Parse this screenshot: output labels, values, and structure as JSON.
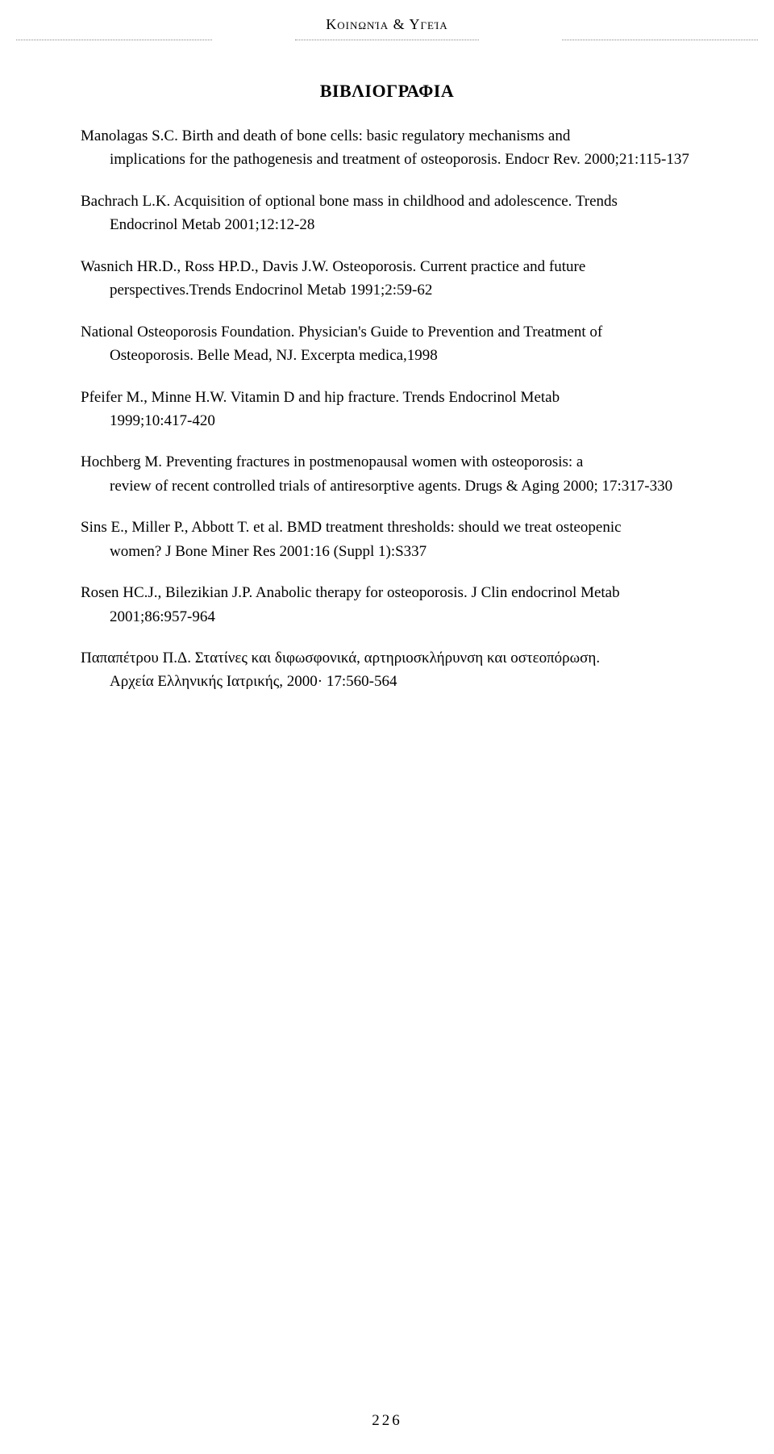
{
  "header": {
    "running_title": "Κοινωνία & Υγεία"
  },
  "section_title": "ΒΙΒΛΙΟΓΡΑΦΙΑ",
  "references": [
    {
      "line1": "Manolagas S.C. Birth and death of bone cells: basic regulatory mechanisms and",
      "cont": "implications for the pathogenesis and treatment of osteoporosis. Endocr Rev. 2000;21:115-137"
    },
    {
      "line1": "Bachrach L.K. Acquisition of optional bone mass in childhood and adolescence. Trends",
      "cont": "Endocrinol Metab 2001;12:12-28"
    },
    {
      "line1": "Wasnich HR.D., Ross HP.D., Davis J.W. Osteoporosis. Current practice and future",
      "cont": "perspectives.Trends Endocrinol Metab 1991;2:59-62"
    },
    {
      "line1": "National Osteoporosis Foundation. Physician's Guide to Prevention and Treatment of",
      "cont": "Osteoporosis. Belle Mead, NJ. Excerpta medica,1998"
    },
    {
      "line1": "Pfeifer M., Minne H.W. Vitamin D and hip fracture. Trends Endocrinol Metab",
      "cont": "1999;10:417-420"
    },
    {
      "line1": "Hochberg M. Preventing fractures in postmenopausal women with osteoporosis: a",
      "cont": "review of recent controlled trials of antiresorptive agents. Drugs & Aging 2000; 17:317-330"
    },
    {
      "line1": "Sins E., Miller P., Abbott T. et al. BMD treatment thresholds: should we treat osteopenic",
      "cont": "women? J Bone Miner Res 2001:16 (Suppl 1):S337"
    },
    {
      "line1": "Rosen HC.J., Bilezikian J.P. Anabolic therapy for osteoporosis. J Clin endocrinol Metab",
      "cont": "2001;86:957-964"
    },
    {
      "line1": "Παπαπέτρου Π.Δ. Στατίνες και διφωσφονικά, αρτηριοσκλήρυνση και οστεοπόρωση.",
      "cont": "Αρχεία Ελληνικής Ιατρικής, 2000· 17:560-564"
    }
  ],
  "page_number": "226"
}
